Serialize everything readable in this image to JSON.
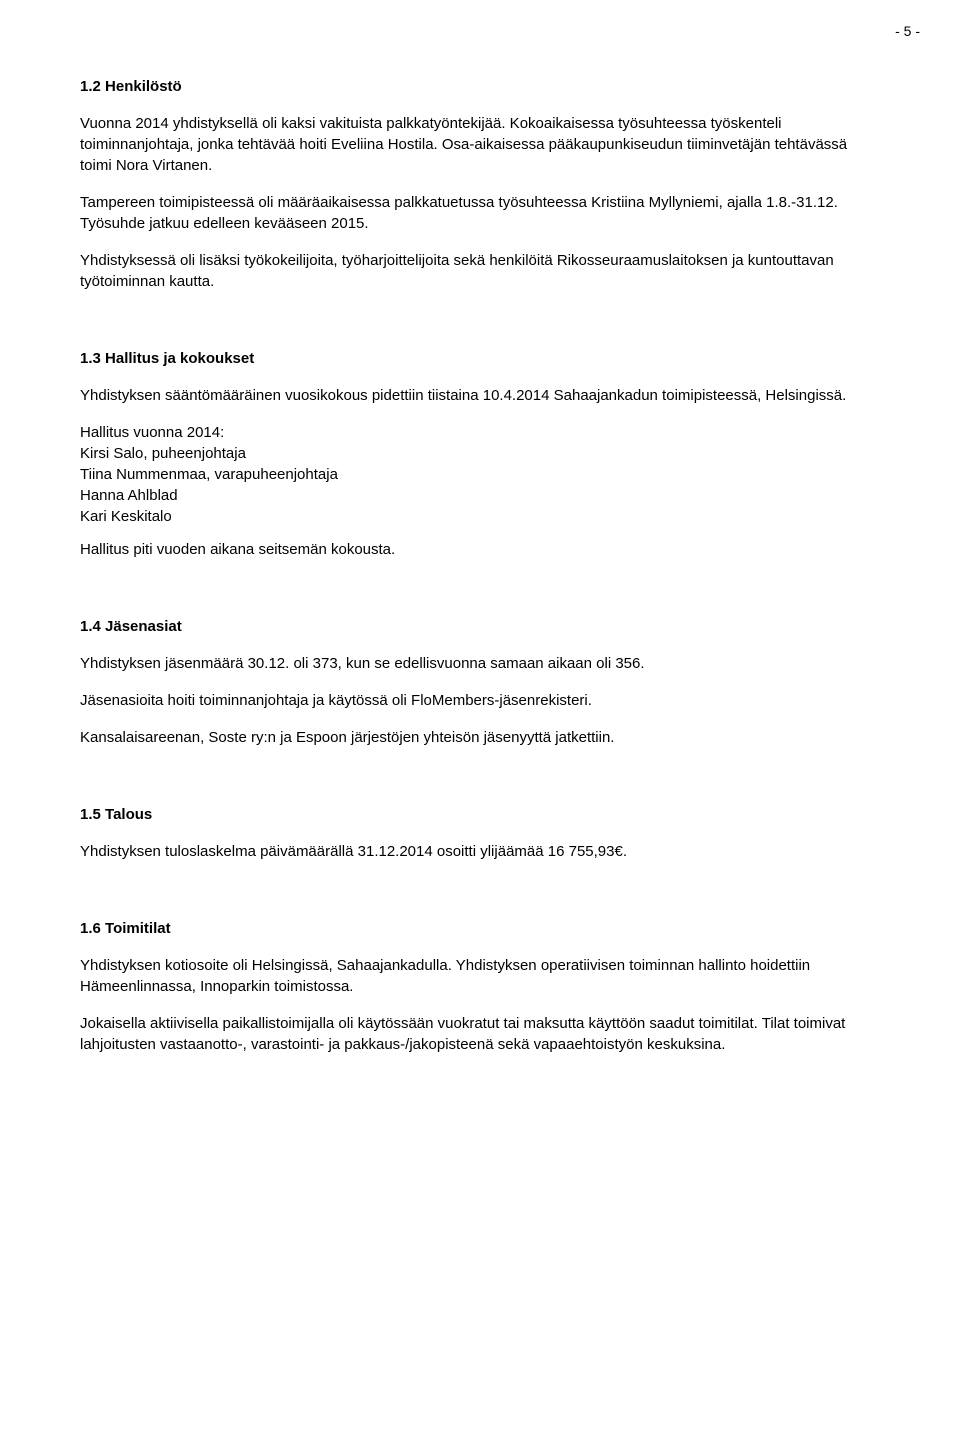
{
  "page": {
    "number": "- 5 -"
  },
  "sections": {
    "s12": {
      "title": "1.2 Henkilöstö",
      "p1": "Vuonna 2014 yhdistyksellä oli kaksi vakituista palkkatyöntekijää. Kokoaikaisessa työsuhteessa työskenteli toiminnanjohtaja, jonka tehtävää hoiti Eveliina Hostila. Osa-aikaisessa pääkaupunkiseudun tiiminvetäjän tehtävässä toimi Nora Virtanen.",
      "p2": "Tampereen toimipisteessä oli määräaikaisessa palkkatuetussa työsuhteessa Kristiina Myllyniemi, ajalla 1.8.-31.12. Työsuhde jatkuu edelleen kevääseen 2015.",
      "p3": "Yhdistyksessä oli lisäksi työkokeilijoita, työharjoittelijoita sekä henkilöitä Rikosseuraamuslaitoksen ja kuntouttavan työtoiminnan kautta."
    },
    "s13": {
      "title": "1.3 Hallitus ja kokoukset",
      "p1": "Yhdistyksen sääntömääräinen vuosikokous pidettiin tiistaina 10.4.2014 Sahaajankadun toimipisteessä, Helsingissä.",
      "board_intro": "Hallitus vuonna 2014:",
      "board": [
        "Kirsi Salo, puheenjohtaja",
        "Tiina Nummenmaa, varapuheenjohtaja",
        "Hanna Ahlblad",
        "Kari Keskitalo"
      ],
      "p2": "Hallitus piti vuoden aikana seitsemän kokousta."
    },
    "s14": {
      "title": "1.4 Jäsenasiat",
      "p1": "Yhdistyksen jäsenmäärä 30.12. oli 373, kun se edellisvuonna samaan aikaan oli 356.",
      "p2": "Jäsenasioita hoiti toiminnanjohtaja ja käytössä oli FloMembers-jäsenrekisteri.",
      "p3": "Kansalaisareenan, Soste ry:n ja  Espoon järjestöjen yhteisön jäsenyyttä jatkettiin."
    },
    "s15": {
      "title": "1.5 Talous",
      "p1": "Yhdistyksen tuloslaskelma päivämäärällä 31.12.2014 osoitti ylijäämää 16 755,93€."
    },
    "s16": {
      "title": "1.6 Toimitilat",
      "p1": "Yhdistyksen kotiosoite oli Helsingissä, Sahaajankadulla. Yhdistyksen operatiivisen toiminnan hallinto hoidettiin Hämeenlinnassa, Innoparkin toimistossa.",
      "p2": "Jokaisella aktiivisella paikallistoimijalla oli käytössään vuokratut tai maksutta käyttöön saadut toimitilat. Tilat toimivat lahjoitusten vastaanotto-, varastointi- ja pakkaus-/jakopisteenä sekä vapaaehtoistyön keskuksina."
    }
  }
}
